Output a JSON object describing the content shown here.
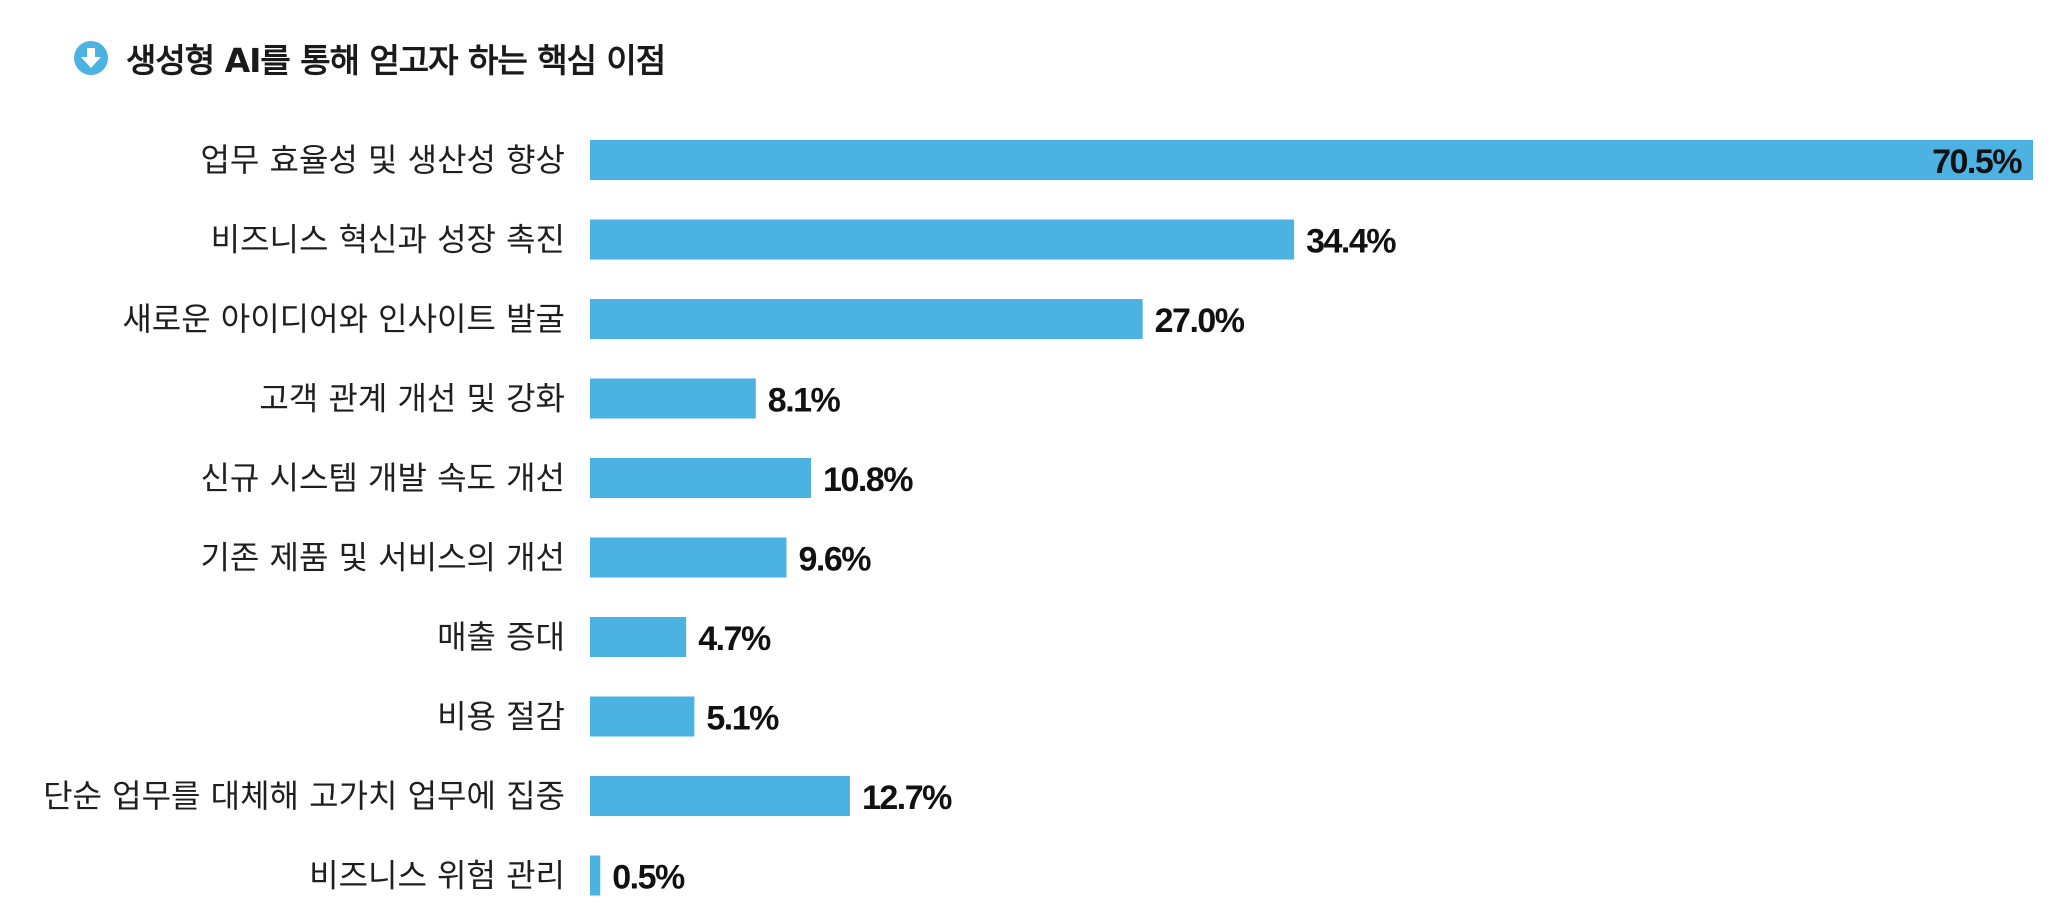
{
  "colors": {
    "bar": "#4BB2E2",
    "icon": "#4BB2E2",
    "text": "#1f1f1f"
  },
  "icon": "down-arrow-circle-icon",
  "chart_data": {
    "type": "bar",
    "orientation": "horizontal",
    "title": "생성형 AI를 통해 얻고자 하는 핵심 이점",
    "categories": [
      "업무 효율성 및 생산성 향상",
      "비즈니스 혁신과 성장 촉진",
      "새로운 아이디어와 인사이트 발굴",
      "고객 관계 개선 및 강화",
      "신규 시스템 개발 속도 개선",
      "기존 제품 및 서비스의 개선",
      "매출 증대",
      "비용 절감",
      "단순 업무를 대체해 고가치 업무에 집중",
      "비즈니스 위험 관리"
    ],
    "values": [
      70.5,
      34.4,
      27.0,
      8.1,
      10.8,
      9.6,
      4.7,
      5.1,
      12.7,
      0.5
    ],
    "value_labels": [
      "70.5%",
      "34.4%",
      "27.0%",
      "8.1%",
      "10.8%",
      "9.6%",
      "4.7%",
      "5.1%",
      "12.7%",
      "0.5%"
    ],
    "xlim": [
      0,
      70.5
    ],
    "grid": false,
    "legend": "none"
  }
}
